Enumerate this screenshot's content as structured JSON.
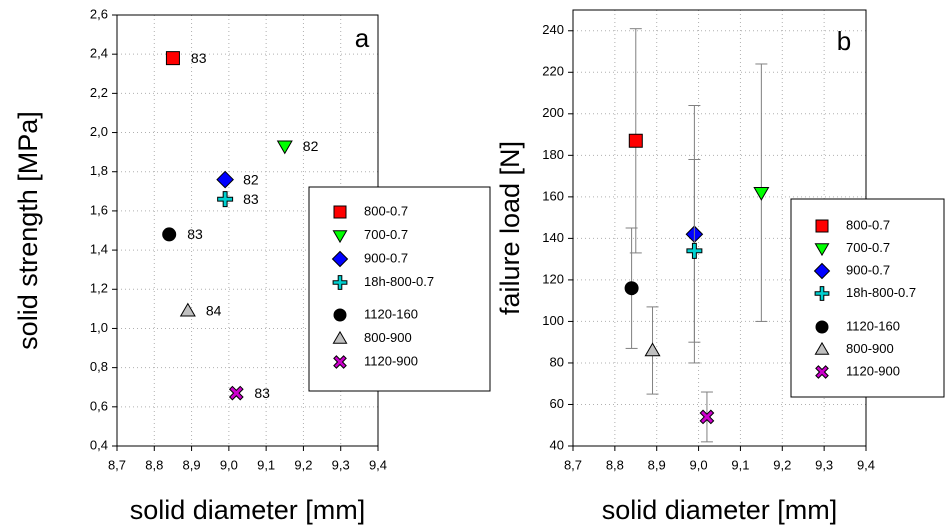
{
  "chart_data": [
    {
      "type": "scatter",
      "panel_label": "a",
      "x_label": "solid diameter [mm]",
      "y_label": "solid strength [MPa]",
      "xlim": [
        8.7,
        9.4
      ],
      "xticks": [
        {
          "value": 8.7,
          "label": "8,7"
        },
        {
          "value": 8.8,
          "label": "8,8"
        },
        {
          "value": 8.9,
          "label": "8,9"
        },
        {
          "value": 9.0,
          "label": "9,0"
        },
        {
          "value": 9.1,
          "label": "9,1"
        },
        {
          "value": 9.2,
          "label": "9,2"
        },
        {
          "value": 9.3,
          "label": "9,3"
        },
        {
          "value": 9.4,
          "label": "9,4"
        }
      ],
      "ylim": [
        0.4,
        2.6
      ],
      "yticks": [
        {
          "value": 0.4,
          "label": "0,4"
        },
        {
          "value": 0.6,
          "label": "0,6"
        },
        {
          "value": 0.8,
          "label": "0,8"
        },
        {
          "value": 1.0,
          "label": "1,0"
        },
        {
          "value": 1.2,
          "label": "1,2"
        },
        {
          "value": 1.4,
          "label": "1,4"
        },
        {
          "value": 1.6,
          "label": "1,6"
        },
        {
          "value": 1.8,
          "label": "1,8"
        },
        {
          "value": 2.0,
          "label": "2,0"
        },
        {
          "value": 2.2,
          "label": "2,2"
        },
        {
          "value": 2.4,
          "label": "2,4"
        },
        {
          "value": 2.6,
          "label": "2,6"
        }
      ],
      "grid": true,
      "series": [
        {
          "name": "800-0.7",
          "color": "#ff0000",
          "marker": "square",
          "x": [
            8.85
          ],
          "values": [
            2.38
          ],
          "labels": [
            "83"
          ]
        },
        {
          "name": "700-0.7",
          "color": "#00ff00",
          "marker": "triangle-down",
          "x": [
            9.15
          ],
          "values": [
            1.93
          ],
          "labels": [
            "82"
          ]
        },
        {
          "name": "900-0.7",
          "color": "#0000ff",
          "marker": "diamond",
          "x": [
            8.99
          ],
          "values": [
            1.76
          ],
          "labels": [
            "82"
          ]
        },
        {
          "name": "18h-800-0.7",
          "color": "#00d0d0",
          "marker": "plus",
          "x": [
            8.99
          ],
          "values": [
            1.66
          ],
          "labels": [
            "83"
          ]
        },
        {
          "name": "1120-160",
          "color": "#000000",
          "marker": "circle",
          "x": [
            8.84
          ],
          "values": [
            1.48
          ],
          "labels": [
            "83"
          ]
        },
        {
          "name": "800-900",
          "color": "#c0c0c0",
          "marker": "triangle-up",
          "x": [
            8.89
          ],
          "values": [
            1.09
          ],
          "labels": [
            "84"
          ]
        },
        {
          "name": "1120-900",
          "color": "#cc00cc",
          "marker": "cross",
          "x": [
            9.02
          ],
          "values": [
            0.67
          ],
          "labels": [
            "83"
          ]
        }
      ]
    },
    {
      "type": "scatter",
      "panel_label": "b",
      "x_label": "solid diameter [mm]",
      "y_label": "failure load [N]",
      "xlim": [
        8.7,
        9.4
      ],
      "xticks": [
        {
          "value": 8.7,
          "label": "8,7"
        },
        {
          "value": 8.8,
          "label": "8,8"
        },
        {
          "value": 8.9,
          "label": "8,9"
        },
        {
          "value": 9.0,
          "label": "9,0"
        },
        {
          "value": 9.1,
          "label": "9,1"
        },
        {
          "value": 9.2,
          "label": "9,2"
        },
        {
          "value": 9.3,
          "label": "9,3"
        },
        {
          "value": 9.4,
          "label": "9,4"
        }
      ],
      "ylim": [
        40,
        250
      ],
      "yticks": [
        40,
        60,
        80,
        100,
        120,
        140,
        160,
        180,
        200,
        220,
        240
      ],
      "grid": true,
      "series": [
        {
          "name": "800-0.7",
          "color": "#ff0000",
          "marker": "square",
          "x": [
            8.85
          ],
          "values": [
            187
          ],
          "errors": [
            54
          ]
        },
        {
          "name": "700-0.7",
          "color": "#00ff00",
          "marker": "triangle-down",
          "x": [
            9.15
          ],
          "values": [
            162
          ],
          "errors": [
            62
          ]
        },
        {
          "name": "900-0.7",
          "color": "#0000ff",
          "marker": "diamond",
          "x": [
            8.99
          ],
          "values": [
            142
          ],
          "errors": [
            62
          ]
        },
        {
          "name": "18h-800-0.7",
          "color": "#00d0d0",
          "marker": "plus",
          "x": [
            8.99
          ],
          "values": [
            134
          ],
          "errors": [
            44
          ]
        },
        {
          "name": "1120-160",
          "color": "#000000",
          "marker": "circle",
          "x": [
            8.84
          ],
          "values": [
            116
          ],
          "errors": [
            29
          ]
        },
        {
          "name": "800-900",
          "color": "#c0c0c0",
          "marker": "triangle-up",
          "x": [
            8.89
          ],
          "values": [
            86
          ],
          "errors": [
            21
          ]
        },
        {
          "name": "1120-900",
          "color": "#cc00cc",
          "marker": "cross",
          "x": [
            9.02
          ],
          "values": [
            54
          ],
          "errors": [
            12
          ]
        }
      ]
    }
  ]
}
